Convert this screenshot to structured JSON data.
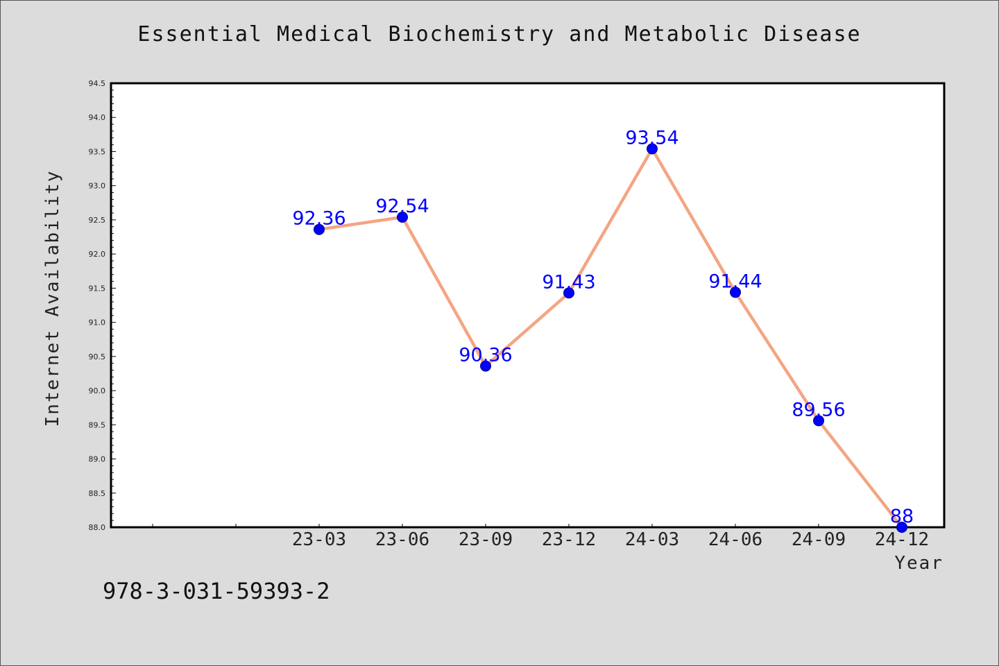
{
  "chart_data": {
    "type": "line",
    "title": "Essential Medical Biochemistry and Metabolic Disease",
    "xlabel": "Year",
    "ylabel": "Internet Availability",
    "categories": [
      "23-03",
      "23-06",
      "23-09",
      "23-12",
      "24-03",
      "24-06",
      "24-09",
      "24-12"
    ],
    "series": [
      {
        "values": [
          92.36,
          92.54,
          90.36,
          91.43,
          93.54,
          91.44,
          89.56,
          88
        ]
      }
    ],
    "data_labels": [
      "92.36",
      "92.54",
      "90.36",
      "91.43",
      "93.54",
      "91.44",
      "89.56",
      "88"
    ],
    "ylim": [
      88.0,
      94.5
    ],
    "yticks": [
      "88.0",
      "88.5",
      "89.0",
      "89.5",
      "90.0",
      "90.5",
      "91.0",
      "91.5",
      "92.0",
      "92.5",
      "93.0",
      "93.5",
      "94.0",
      "94.5"
    ],
    "grid": false,
    "colors": {
      "line": "#f4a582",
      "marker": "#0000ff",
      "label": "#0000ff"
    }
  },
  "footer": {
    "code": "978-3-031-59393-2"
  }
}
